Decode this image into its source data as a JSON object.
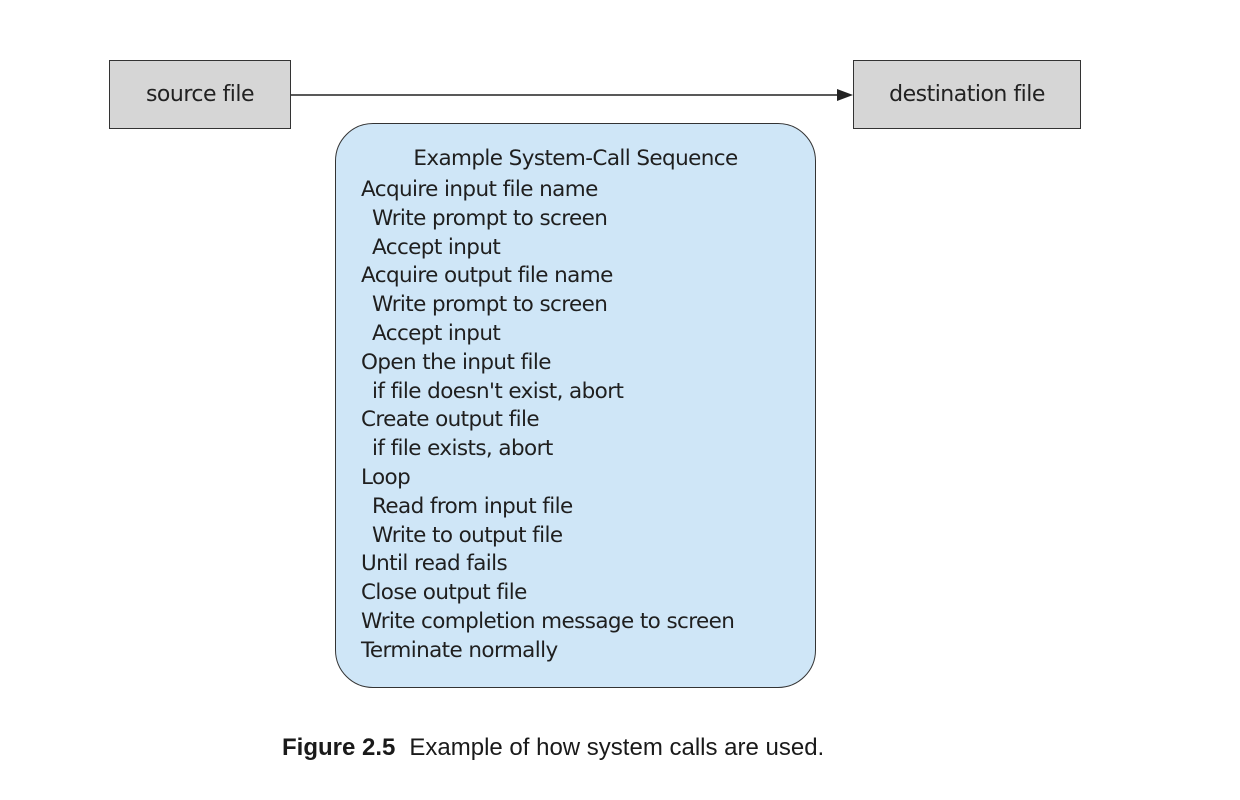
{
  "nodes": {
    "source": "source file",
    "destination": "destination file"
  },
  "sequence": {
    "title": "Example System-Call Sequence",
    "steps": [
      {
        "text": "Acquire input file name",
        "indent": false
      },
      {
        "text": "Write prompt to screen",
        "indent": true
      },
      {
        "text": "Accept input",
        "indent": true
      },
      {
        "text": "Acquire output file name",
        "indent": false
      },
      {
        "text": "Write prompt to screen",
        "indent": true
      },
      {
        "text": "Accept input",
        "indent": true
      },
      {
        "text": "Open the input file",
        "indent": false
      },
      {
        "text": "if file doesn't exist, abort",
        "indent": true
      },
      {
        "text": "Create output file",
        "indent": false
      },
      {
        "text": "if file exists, abort",
        "indent": true
      },
      {
        "text": "Loop",
        "indent": false
      },
      {
        "text": "Read from input file",
        "indent": true
      },
      {
        "text": "Write to output file",
        "indent": true
      },
      {
        "text": "Until read fails",
        "indent": false
      },
      {
        "text": "Close output file",
        "indent": false
      },
      {
        "text": "Write completion message to screen",
        "indent": false
      },
      {
        "text": "Terminate normally",
        "indent": false
      }
    ]
  },
  "caption": {
    "label": "Figure 2.5",
    "text": "Example of how system calls are used."
  },
  "colors": {
    "panel_fill": "#cfe6f7",
    "file_box_fill": "#d6d6d6",
    "stroke": "#333333"
  }
}
